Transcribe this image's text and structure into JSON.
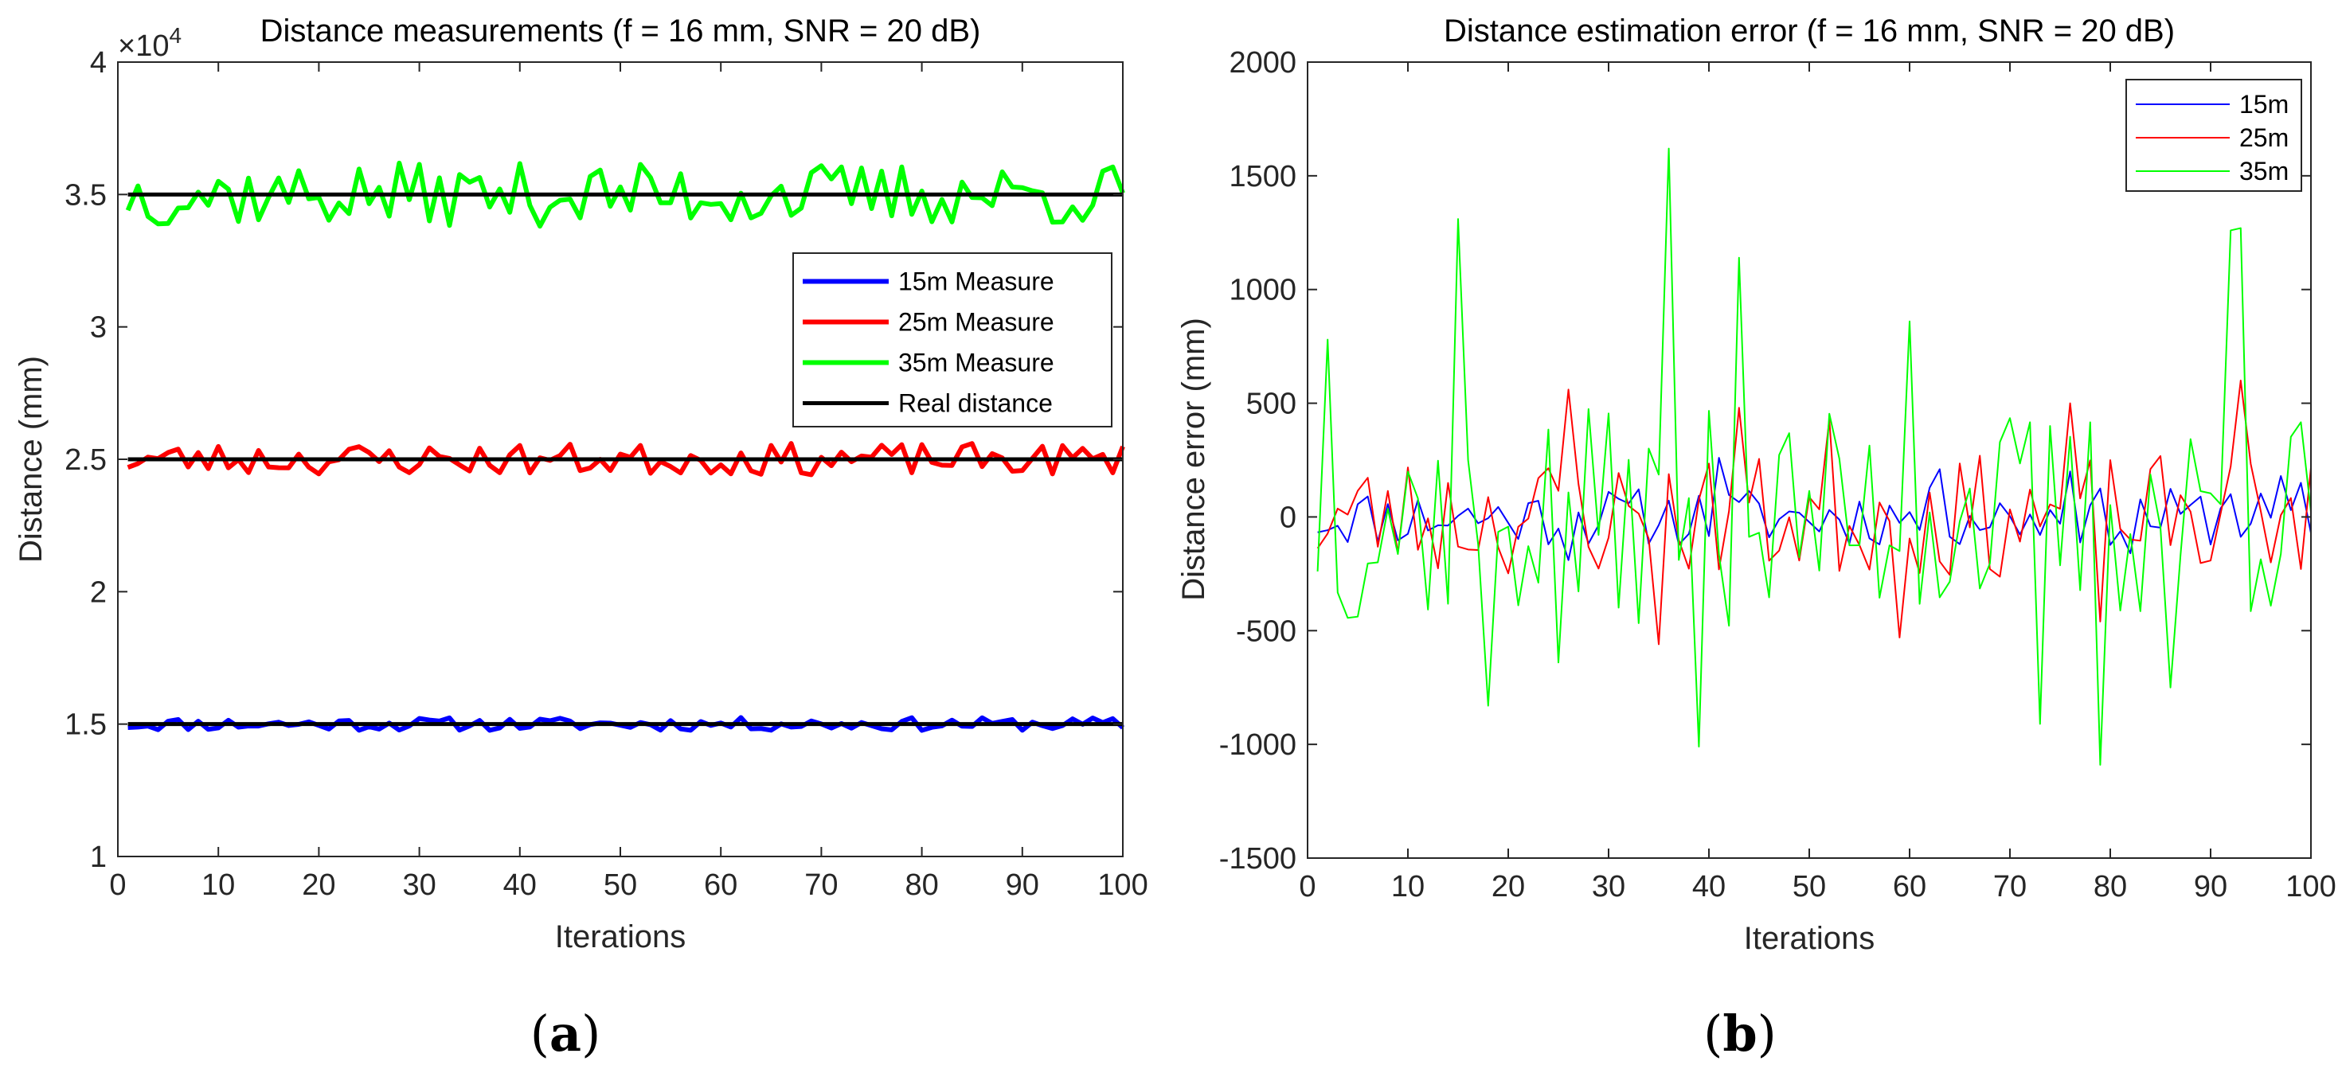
{
  "chart_data": [
    {
      "id": "a",
      "type": "line",
      "title": "Distance measurements (f = 16 mm, SNR = 20 dB)",
      "xlabel": "Iterations",
      "ylabel": "Distance (mm)",
      "exponent_label": "×10",
      "exponent_power": "4",
      "xlim": [
        0,
        100
      ],
      "ylim": [
        1,
        4
      ],
      "xticks": [
        0,
        10,
        20,
        30,
        40,
        50,
        60,
        70,
        80,
        90,
        100
      ],
      "xtick_labels": [
        "0",
        "10",
        "20",
        "30",
        "40",
        "50",
        "60",
        "70",
        "80",
        "90",
        "100"
      ],
      "yticks": [
        1,
        1.5,
        2,
        2.5,
        3,
        3.5,
        4
      ],
      "ytick_labels": [
        "1",
        "1.5",
        "2",
        "2.5",
        "3",
        "3.5",
        "4"
      ],
      "legend_position": "center-right",
      "grid": false,
      "series": [
        {
          "name": "15m Measure",
          "color": "#0000ff",
          "base": 1.5,
          "amp": 0.025,
          "seed": 11,
          "width": 6
        },
        {
          "name": "25m Measure",
          "color": "#ff0000",
          "base": 2.5,
          "amp": 0.06,
          "seed": 23,
          "width": 6
        },
        {
          "name": "35m Measure",
          "color": "#00ff00",
          "base": 3.5,
          "amp": 0.12,
          "seed": 37,
          "width": 6
        },
        {
          "name": "Real distance",
          "color": "#000000",
          "values_const": [
            1.5,
            2.5,
            3.5
          ],
          "width": 5
        }
      ]
    },
    {
      "id": "b",
      "type": "line",
      "title": "Distance estimation error (f = 16 mm, SNR = 20 dB)",
      "xlabel": "Iterations",
      "ylabel": "Distance error (mm)",
      "xlim": [
        0,
        100
      ],
      "ylim": [
        -1500,
        2000
      ],
      "xticks": [
        0,
        10,
        20,
        30,
        40,
        50,
        60,
        70,
        80,
        90,
        100
      ],
      "xtick_labels": [
        "0",
        "10",
        "20",
        "30",
        "40",
        "50",
        "60",
        "70",
        "80",
        "90",
        "100"
      ],
      "yticks": [
        -1500,
        -1000,
        -500,
        0,
        500,
        1000,
        1500,
        2000
      ],
      "ytick_labels": [
        "-1500",
        "-1000",
        "-500",
        "0",
        "500",
        "1000",
        "1500",
        "2000"
      ],
      "legend_position": "top-right",
      "grid": false,
      "series": [
        {
          "name": "15m",
          "color": "#0000ff",
          "amp": 130,
          "seed": 11,
          "width": 2,
          "peaks": [
            [
              41,
              260
            ],
            [
              63,
              210
            ],
            [
              76,
              200
            ],
            [
              92,
              100
            ],
            [
              97,
              180
            ],
            [
              99,
              150
            ],
            [
              26,
              -190
            ],
            [
              82,
              -160
            ]
          ]
        },
        {
          "name": "25m",
          "color": "#ff0000",
          "amp": 270,
          "seed": 23,
          "width": 2,
          "peaks": [
            [
              26,
              560
            ],
            [
              43,
              480
            ],
            [
              52,
              430
            ],
            [
              76,
              500
            ],
            [
              93,
              600
            ],
            [
              96,
              -200
            ],
            [
              35,
              -560
            ],
            [
              59,
              -530
            ],
            [
              79,
              -460
            ]
          ]
        },
        {
          "name": "35m",
          "color": "#00ff00",
          "amp": 480,
          "seed": 37,
          "width": 2,
          "peaks": [
            [
              15,
              1310
            ],
            [
              36,
              1620
            ],
            [
              43,
              1140
            ],
            [
              60,
              860
            ],
            [
              92,
              1260
            ],
            [
              93,
              1270
            ],
            [
              2,
              780
            ],
            [
              18,
              -830
            ],
            [
              39,
              -1010
            ],
            [
              73,
              -910
            ],
            [
              79,
              -1090
            ],
            [
              86,
              -750
            ],
            [
              25,
              -640
            ]
          ]
        }
      ]
    }
  ],
  "captions": [
    {
      "open": "(",
      "letter": "a",
      "close": ")"
    },
    {
      "open": "(",
      "letter": "b",
      "close": ")"
    }
  ]
}
